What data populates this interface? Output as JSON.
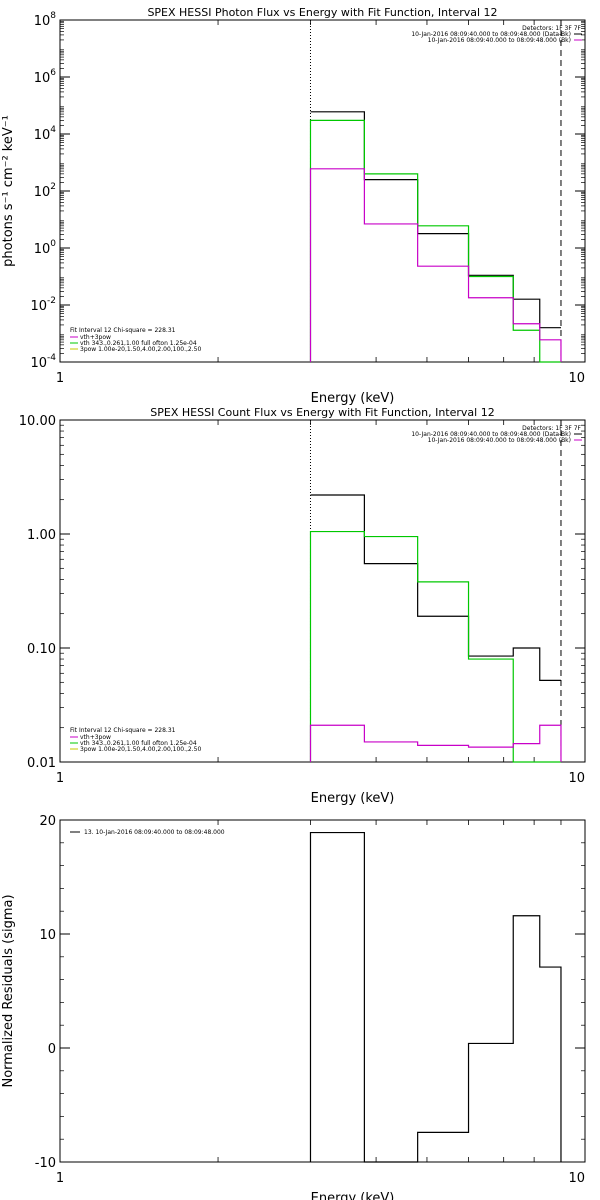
{
  "chart_data": [
    {
      "type": "line",
      "title": "SPEX HESSI Photon Flux vs Energy with Fit Function, Interval 12",
      "xlabel": "Energy (keV)",
      "ylabel": "photons s⁻¹ cm⁻² keV⁻¹",
      "xscale": "log",
      "yscale": "log",
      "xlim": [
        1,
        10
      ],
      "ylim": [
        0.0001,
        100000000
      ],
      "x_ticks": [
        {
          "v": 1,
          "label": "1"
        },
        {
          "v": 10,
          "label": "10"
        }
      ],
      "y_ticks": [
        {
          "v": 0.0001,
          "base": "10",
          "exp": "-4"
        },
        {
          "v": 0.01,
          "base": "10",
          "exp": "-2"
        },
        {
          "v": 1,
          "base": "10",
          "exp": "0"
        },
        {
          "v": 100,
          "base": "10",
          "exp": "2"
        },
        {
          "v": 10000,
          "base": "10",
          "exp": "4"
        },
        {
          "v": 1000000,
          "base": "10",
          "exp": "6"
        },
        {
          "v": 100000000,
          "base": "10",
          "exp": "8"
        }
      ],
      "vlines": [
        {
          "x": 3.0,
          "style": "dotted"
        },
        {
          "x": 9.0,
          "style": "dashed"
        }
      ],
      "legend_topright": [
        "Detectors: 1F 3F 7F",
        "10-Jan-2016 08:09:40.000 to 08:09:48.000 (Data-Bk)",
        "10-Jan-2016 08:09:40.000 to 08:09:48.000 (Bk)"
      ],
      "legend_topright_colors": [
        "#000000",
        "#c800c8"
      ],
      "legend_bottomleft_header": "Fit Interval 12   Chi-square = 228.31",
      "legend_bottomleft": [
        {
          "text": "vth+3pow",
          "color": "#c800c8"
        },
        {
          "text": "vth 343.,0.261,1.00  full ofton 1.25e-04",
          "color": "#00c800"
        },
        {
          "text": "3pow 1.00e-20,1.50,4.00,2.00,100.,2.50",
          "color": "#c8c800"
        }
      ],
      "edges": [
        3.0,
        3.8,
        4.8,
        6.0,
        7.3,
        8.2,
        9.0
      ],
      "series": [
        {
          "color": "#000000",
          "values": [
            60000,
            250,
            3.2,
            0.11,
            0.016,
            0.0016
          ],
          "drop_to_floor": false
        },
        {
          "color": "#00c800",
          "values": [
            30000,
            400,
            6.0,
            0.1,
            0.0013,
            0.0001
          ],
          "drop_to_floor": true
        },
        {
          "color": "#c800c8",
          "values": [
            600,
            7.0,
            0.23,
            0.018,
            0.0022,
            0.0006
          ],
          "drop_to_floor": true
        }
      ]
    },
    {
      "type": "line",
      "title": "SPEX HESSI Count Flux vs Energy with Fit Function, Interval 12",
      "xlabel": "Energy (keV)",
      "ylabel": "",
      "xscale": "log",
      "yscale": "log",
      "xlim": [
        1,
        10
      ],
      "ylim": [
        0.01,
        10
      ],
      "x_ticks": [
        {
          "v": 1,
          "label": "1"
        },
        {
          "v": 10,
          "label": "10"
        }
      ],
      "y_ticks": [
        {
          "v": 0.01,
          "label": "0.01"
        },
        {
          "v": 0.1,
          "label": "0.10"
        },
        {
          "v": 1,
          "label": "1.00"
        },
        {
          "v": 10,
          "label": "10.00"
        }
      ],
      "vlines": [
        {
          "x": 3.0,
          "style": "dotted"
        },
        {
          "x": 9.0,
          "style": "dashed"
        }
      ],
      "legend_topright": [
        "Detectors: 1F 3F 7F",
        "10-Jan-2016 08:09:40.000 to 08:09:48.000 (Data-Bk)",
        "10-Jan-2016 08:09:40.000 to 08:09:48.000 (Bk)"
      ],
      "legend_topright_colors": [
        "#000000",
        "#c800c8"
      ],
      "legend_bottomleft_header": "Fit Interval 12   Chi-square = 228.31",
      "legend_bottomleft": [
        {
          "text": "vth+3pow",
          "color": "#c800c8"
        },
        {
          "text": "vth 343.,0.261,1.00  full ofton 1.25e-04",
          "color": "#00c800"
        },
        {
          "text": "3pow 1.00e-20,1.50,4.00,2.00,100.,2.50",
          "color": "#c8c800"
        }
      ],
      "edges": [
        3.0,
        3.8,
        4.8,
        6.0,
        7.3,
        8.2,
        9.0
      ],
      "series": [
        {
          "color": "#000000",
          "values": [
            2.2,
            0.55,
            0.19,
            0.085,
            0.1,
            0.052
          ],
          "drop_to_floor": false
        },
        {
          "color": "#00c800",
          "values": [
            1.05,
            0.95,
            0.38,
            0.08,
            0.0098,
            0.0098
          ],
          "drop_to_floor": true
        },
        {
          "color": "#c800c8",
          "values": [
            0.021,
            0.015,
            0.014,
            0.0135,
            0.0145,
            0.021
          ],
          "drop_to_floor": true
        }
      ]
    },
    {
      "type": "line",
      "title": "",
      "xlabel": "Energy (keV)",
      "ylabel": "Normalized Residuals (sigma)",
      "xscale": "log",
      "yscale": "linear",
      "xlim": [
        1,
        10
      ],
      "ylim": [
        -10,
        20
      ],
      "x_ticks": [
        {
          "v": 1,
          "label": "1"
        },
        {
          "v": 10,
          "label": "10"
        }
      ],
      "y_ticks": [
        {
          "v": -10,
          "label": "-10"
        },
        {
          "v": 0,
          "label": "0"
        },
        {
          "v": 10,
          "label": "10"
        },
        {
          "v": 20,
          "label": "20"
        }
      ],
      "vlines": [],
      "legend_topleft": "13. 10-Jan-2016 08:09:40.000 to 08:09:48.000",
      "edges": [
        3.0,
        3.8,
        4.8,
        6.0,
        7.3,
        8.2,
        9.0
      ],
      "series": [
        {
          "color": "#000000",
          "values": [
            18.9,
            -12,
            -7.4,
            0.4,
            11.6,
            7.1
          ],
          "drop_to_floor": true
        }
      ]
    }
  ]
}
